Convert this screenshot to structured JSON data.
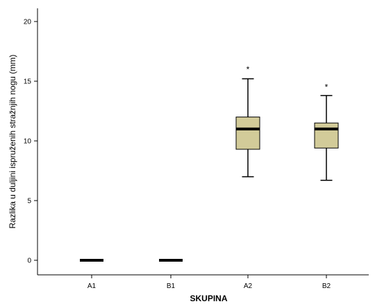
{
  "chart_data": {
    "type": "boxplot",
    "title": "",
    "xlabel": "SKUPINA",
    "ylabel": "Razlika u duljini ispruženih stražnjih nogu (mm)",
    "ylim": [
      0,
      20
    ],
    "yticks": [
      0,
      5,
      10,
      15,
      20
    ],
    "yticks_labels": [
      "0",
      "5",
      "10",
      "15",
      "20"
    ],
    "categories": [
      "A1",
      "B1",
      "A2",
      "B2"
    ],
    "grid": false,
    "legend": "none",
    "box_color": "#D2CB99",
    "boxes": [
      {
        "category": "A1",
        "min": 0,
        "q1": 0,
        "median": 0,
        "q3": 0,
        "max": 0,
        "outliers": []
      },
      {
        "category": "B1",
        "min": 0,
        "q1": 0,
        "median": 0,
        "q3": 0,
        "max": 0,
        "outliers": []
      },
      {
        "category": "A2",
        "min": 7.0,
        "q1": 9.3,
        "median": 11.0,
        "q3": 12.0,
        "max": 15.2,
        "outliers": [
          {
            "value": 16.0,
            "symbol": "*"
          }
        ]
      },
      {
        "category": "B2",
        "min": 6.7,
        "q1": 9.4,
        "median": 11.0,
        "q3": 11.5,
        "max": 13.8,
        "outliers": [
          {
            "value": 14.5,
            "symbol": "*"
          }
        ]
      }
    ]
  }
}
